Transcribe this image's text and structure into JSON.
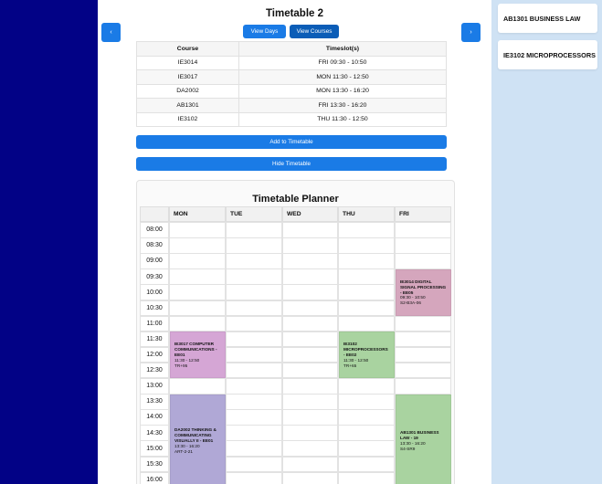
{
  "header": {
    "title": "Timetable 2",
    "prev_label": "‹",
    "next_label": "›",
    "view_days_label": "View Days",
    "view_courses_label": "View Courses"
  },
  "course_table": {
    "headers": [
      "Course",
      "Timeslot(s)"
    ],
    "rows": [
      {
        "course": "IE3014",
        "timeslot": "FRI 09:30 - 10:50"
      },
      {
        "course": "IE3017",
        "timeslot": "MON 11:30 - 12:50"
      },
      {
        "course": "DA2002",
        "timeslot": "MON 13:30 - 16:20"
      },
      {
        "course": "AB1301",
        "timeslot": "FRI 13:30 - 16:20"
      },
      {
        "course": "IE3102",
        "timeslot": "THU 11:30 - 12:50"
      }
    ]
  },
  "actions": {
    "add_label": "Add to Timetable",
    "hide_label": "Hide Timetable"
  },
  "planner": {
    "title": "Timetable Planner",
    "days": [
      "MON",
      "TUE",
      "WED",
      "THU",
      "FRI"
    ],
    "times": [
      "08:00",
      "08:30",
      "09:00",
      "09:30",
      "10:00",
      "10:30",
      "11:00",
      "11:30",
      "12:00",
      "12:30",
      "13:00",
      "13:30",
      "14:00",
      "14:30",
      "15:00",
      "15:30",
      "16:00"
    ],
    "events": [
      {
        "title": "IE3014 DIGITAL SIGNAL PROCESSING - EE05",
        "time": "09:30 - 10:50",
        "venue": "S2-B3A-06",
        "color": "#d5a6bd"
      },
      {
        "title": "IE3017 COMPUTER COMMUNICATIONS - EE01",
        "time": "11:30 - 12:50",
        "venue": "TR+95",
        "color": "#d5a6d5"
      },
      {
        "title": "IE3102 MICROPROCESSORS - EE02",
        "time": "11:30 - 12:50",
        "venue": "TR+65",
        "color": "#a9d3a0"
      },
      {
        "title": "DA2002 THINKING & COMMUNICATING VISUALLY II - EE01",
        "time": "13:30 - 16:20",
        "venue": "ART-2-21",
        "color": "#b0a8d6"
      },
      {
        "title": "AB1301 BUSINESS LAW - 19",
        "time": "13:30 - 16:20",
        "venue": "S4-SR9",
        "color": "#a9d3a0"
      }
    ]
  },
  "sidebar": {
    "courses": [
      "AB1301 BUSINESS LAW",
      "IE3102 MICROPROCESSORS"
    ]
  },
  "colors": {
    "left_bar": "#020286",
    "accent": "#1a7be6",
    "accent_dark": "#0b5db7",
    "right_panel": "#cfe2f4"
  }
}
